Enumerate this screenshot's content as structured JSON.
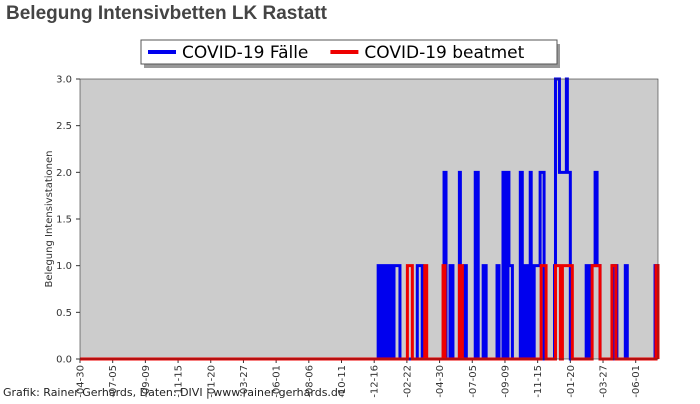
{
  "chart_data": {
    "type": "line",
    "title": "Belegung Intensivbetten LK Rastatt",
    "y_label": "Belegung Intensivstationen",
    "footer": "Grafik: Rainer Gerhards, Daten: DIVI | www.rainer-gerhards.de",
    "background": "#cccccc",
    "xlim": [
      0,
      1167
    ],
    "xticks": [
      {
        "value": 0,
        "label": "-04-30"
      },
      {
        "value": 66,
        "label": "-07-05"
      },
      {
        "value": 132,
        "label": "-09-09"
      },
      {
        "value": 198,
        "label": "-11-15"
      },
      {
        "value": 264,
        "label": "-01-20"
      },
      {
        "value": 330,
        "label": "-03-27"
      },
      {
        "value": 396,
        "label": "-06-01"
      },
      {
        "value": 462,
        "label": "-08-06"
      },
      {
        "value": 528,
        "label": "-10-11"
      },
      {
        "value": 594,
        "label": "-12-16"
      },
      {
        "value": 660,
        "label": "-02-22"
      },
      {
        "value": 726,
        "label": "-04-30"
      },
      {
        "value": 792,
        "label": "-07-05"
      },
      {
        "value": 858,
        "label": "-09-09"
      },
      {
        "value": 924,
        "label": "-11-15"
      },
      {
        "value": 990,
        "label": "-01-20"
      },
      {
        "value": 1056,
        "label": "-03-27"
      },
      {
        "value": 1122,
        "label": "-06-01"
      }
    ],
    "ylim": [
      0,
      3
    ],
    "yticks": [
      {
        "value": 0,
        "label": "0.0"
      },
      0.5,
      {
        "value": 1,
        "label": "1.0"
      },
      1.5,
      {
        "value": 2,
        "label": "2.0"
      },
      2.5,
      {
        "value": 3,
        "label": "3.0"
      }
    ],
    "series": [
      {
        "name": "COVID-19 Fälle",
        "color": "#0000ee",
        "x": [
          0,
          602,
          602,
          608,
          608,
          614,
          614,
          620,
          620,
          626,
          626,
          632,
          632,
          634,
          634,
          646,
          646,
          681,
          681,
          691,
          691,
          735,
          735,
          739,
          739,
          747,
          747,
          753,
          753,
          766,
          766,
          768,
          768,
          776,
          776,
          780,
          780,
          798,
          798,
          804,
          804,
          814,
          814,
          820,
          820,
          842,
          842,
          846,
          846,
          854,
          854,
          858,
          858,
          864,
          864,
          866,
          866,
          873,
          873,
          889,
          889,
          893,
          893,
          895,
          895,
          901,
          901,
          903,
          903,
          907,
          907,
          909,
          909,
          911,
          911,
          917,
          917,
          929,
          929,
          937,
          937,
          958,
          958,
          960,
          960,
          968,
          968,
          982,
          982,
          984,
          984,
          990,
          990,
          1022,
          1022,
          1026,
          1026,
          1030,
          1030,
          1040,
          1040,
          1044,
          1044,
          1050,
          1050,
          1076,
          1076,
          1084,
          1084,
          1101,
          1101,
          1105,
          1105,
          1161,
          1161,
          1167,
          1167
        ],
        "values": [
          0,
          0,
          1,
          1,
          0,
          0,
          1,
          1,
          0,
          0,
          1,
          1,
          0,
          0,
          1,
          1,
          0,
          0,
          1,
          1,
          0,
          0,
          2,
          2,
          0,
          0,
          1,
          1,
          0,
          0,
          2,
          2,
          0,
          0,
          1,
          1,
          0,
          0,
          2,
          2,
          0,
          0,
          1,
          1,
          0,
          0,
          1,
          1,
          0,
          0,
          2,
          2,
          0,
          0,
          2,
          2,
          1,
          1,
          0,
          0,
          2,
          2,
          0,
          0,
          1,
          1,
          0,
          0,
          1,
          1,
          0,
          0,
          2,
          2,
          0,
          0,
          1,
          1,
          2,
          2,
          0,
          0,
          1,
          1,
          3,
          3,
          2,
          2,
          3,
          3,
          2,
          2,
          0,
          0,
          1,
          1,
          0,
          0,
          1,
          1,
          2,
          2,
          1,
          1,
          0,
          0,
          1,
          1,
          0,
          0,
          1,
          1,
          0,
          0,
          1,
          1,
          0
        ]
      },
      {
        "name": "COVID-19 beatmet",
        "color": "#ee0000",
        "x": [
          0,
          661,
          661,
          671,
          671,
          696,
          696,
          700,
          700,
          733,
          733,
          737,
          737,
          766,
          766,
          772,
          772,
          931,
          931,
          941,
          941,
          960,
          960,
          970,
          970,
          974,
          974,
          994,
          994,
          1034,
          1034,
          1050,
          1050,
          1074,
          1074,
          1082,
          1082,
          1163,
          1163,
          1167,
          1167
        ],
        "values": [
          0,
          0,
          1,
          1,
          0,
          0,
          1,
          1,
          0,
          0,
          1,
          1,
          0,
          0,
          1,
          1,
          0,
          0,
          1,
          1,
          0,
          0,
          1,
          1,
          0,
          0,
          1,
          1,
          0,
          0,
          1,
          1,
          0,
          0,
          1,
          1,
          0,
          0,
          1,
          1,
          0
        ]
      }
    ]
  }
}
